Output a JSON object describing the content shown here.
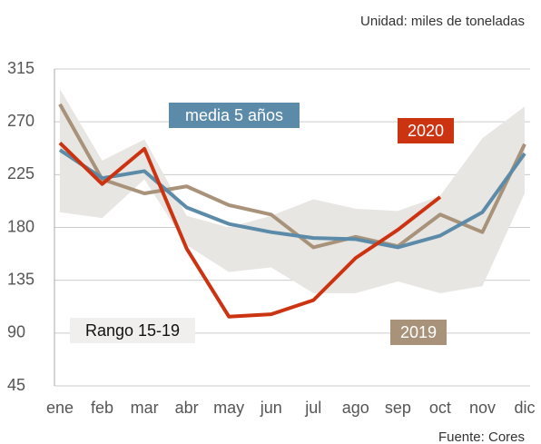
{
  "chart_data": {
    "type": "line",
    "subtitle": "Unidad: miles de toneladas",
    "source": "Fuente: Cores",
    "categories": [
      "ene",
      "feb",
      "mar",
      "abr",
      "may",
      "jun",
      "jul",
      "ago",
      "sep",
      "oct",
      "nov",
      "dic"
    ],
    "ylim": [
      45,
      315
    ],
    "yticks": [
      45,
      90,
      135,
      180,
      225,
      270,
      315
    ],
    "grid": true,
    "range": {
      "name": "Rango 15-19",
      "color": "#e8e6e3",
      "high": [
        298,
        237,
        255,
        190,
        180,
        190,
        204,
        196,
        194,
        207,
        256,
        283
      ],
      "low": [
        193,
        188,
        221,
        165,
        142,
        146,
        124,
        124,
        134,
        124,
        130,
        209
      ]
    },
    "series": [
      {
        "name": "2019",
        "color": "#a8937a",
        "values": [
          285,
          221,
          209,
          215,
          199,
          191,
          163,
          172,
          164,
          191,
          176,
          251
        ]
      },
      {
        "name": "media 5 años",
        "color": "#5b8ba8",
        "values": [
          246,
          222,
          228,
          197,
          183,
          176,
          171,
          170,
          163,
          173,
          193,
          243
        ]
      },
      {
        "name": "2020",
        "color": "#cc3311",
        "values": [
          252,
          217,
          247,
          162,
          104,
          106,
          118,
          154,
          178,
          206,
          null,
          null
        ]
      }
    ]
  }
}
